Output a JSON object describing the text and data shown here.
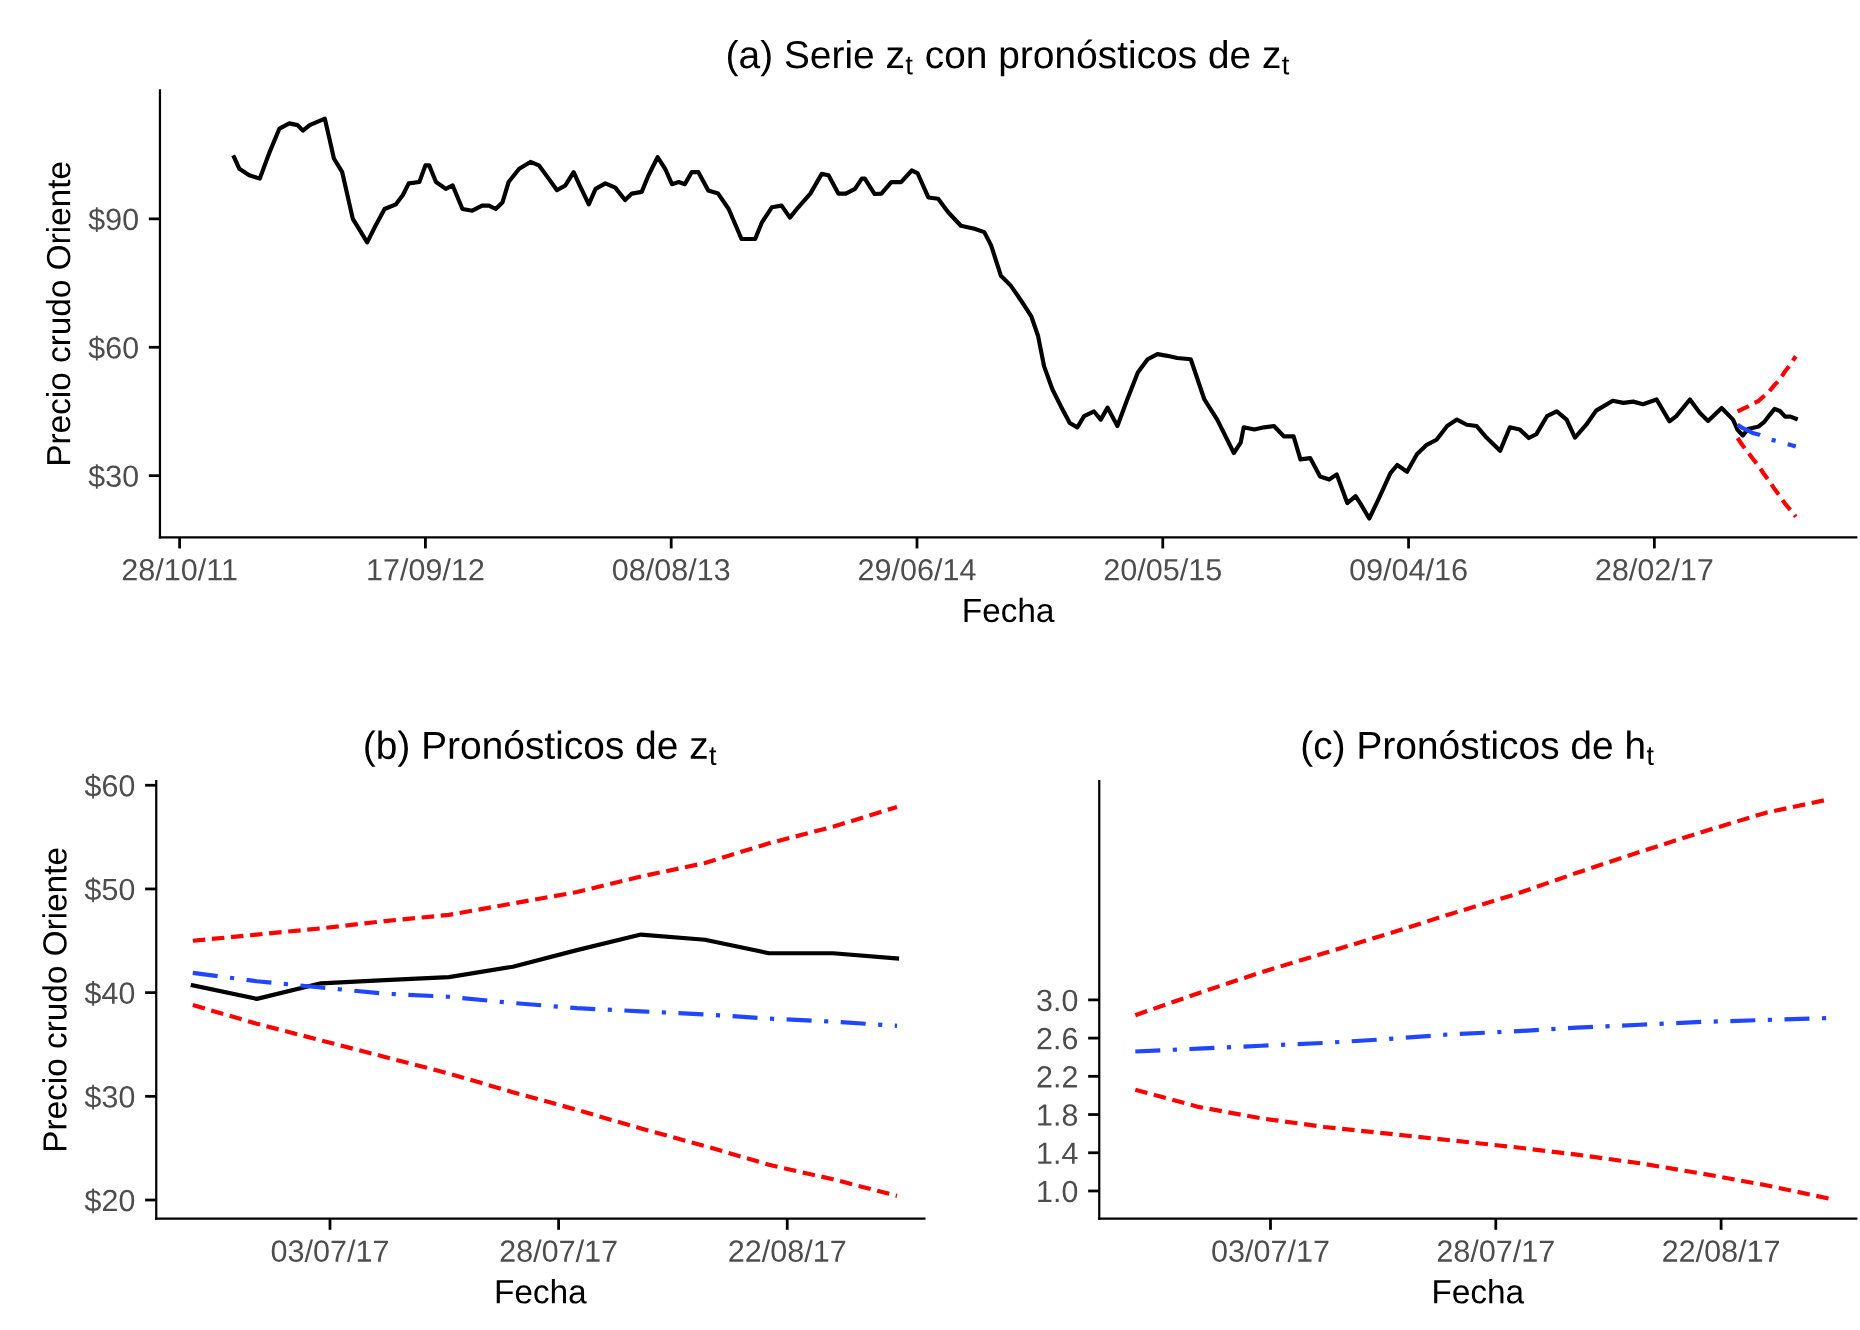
{
  "chart_data": [
    {
      "type": "line",
      "title": "(a) Serie z$_{t}$ con pronósticos de z$_{t}$",
      "xlabel": "Fecha",
      "ylabel": "Precio crudo Oriente",
      "grid": false,
      "marker": "none",
      "xlim": [
        "2011-10-02",
        "2017-11-22"
      ],
      "xticks": [
        {
          "value": "2011-10-28",
          "label": "28/10/11"
        },
        {
          "value": "2012-09-17",
          "label": "17/09/12"
        },
        {
          "value": "2013-08-08",
          "label": "08/08/13"
        },
        {
          "value": "2014-06-29",
          "label": "29/06/14"
        },
        {
          "value": "2015-05-20",
          "label": "20/05/15"
        },
        {
          "value": "2016-04-09",
          "label": "09/04/16"
        },
        {
          "value": "2017-02-28",
          "label": "28/02/17"
        }
      ],
      "ylim": [
        15.6,
        120
      ],
      "yticks": [
        {
          "value": 30,
          "label": "$30"
        },
        {
          "value": 60,
          "label": "$60"
        },
        {
          "value": 90,
          "label": "$90"
        }
      ],
      "series": [
        {
          "color": "#000000",
          "line_style": "solid",
          "x": [
            "2012-01-08",
            "2012-01-15",
            "2012-01-28",
            "2012-02-11",
            "2012-02-24",
            "2012-03-08",
            "2012-03-21",
            "2012-04-01",
            "2012-04-08",
            "2012-04-17",
            "2012-05-07",
            "2012-05-13",
            "2012-05-19",
            "2012-05-30",
            "2012-06-13",
            "2012-06-21",
            "2012-07-02",
            "2012-07-13",
            "2012-07-25",
            "2012-08-09",
            "2012-08-18",
            "2012-08-26",
            "2012-09-09",
            "2012-09-17",
            "2012-09-22",
            "2012-10-01",
            "2012-10-14",
            "2012-10-23",
            "2012-11-05",
            "2012-11-18",
            "2012-12-01",
            "2012-12-10",
            "2012-12-19",
            "2012-12-28",
            "2013-01-05",
            "2013-01-19",
            "2013-02-03",
            "2013-02-14",
            "2013-02-27",
            "2013-03-10",
            "2013-03-21",
            "2013-04-01",
            "2013-04-09",
            "2013-04-21",
            "2013-04-30",
            "2013-05-13",
            "2013-05-26",
            "2013-06-08",
            "2013-06-17",
            "2013-06-30",
            "2013-07-09",
            "2013-07-21",
            "2013-07-31",
            "2013-08-09",
            "2013-08-18",
            "2013-08-26",
            "2013-09-04",
            "2013-09-13",
            "2013-09-26",
            "2013-10-09",
            "2013-10-23",
            "2013-11-09",
            "2013-11-27",
            "2013-12-06",
            "2013-12-19",
            "2014-01-01",
            "2014-01-12",
            "2014-01-23",
            "2014-02-08",
            "2014-02-23",
            "2014-03-04",
            "2014-03-17",
            "2014-03-27",
            "2014-04-08",
            "2014-04-17",
            "2014-04-21",
            "2014-05-04",
            "2014-05-13",
            "2014-05-26",
            "2014-06-08",
            "2014-06-22",
            "2014-06-30",
            "2014-07-14",
            "2014-07-27",
            "2014-08-09",
            "2014-08-26",
            "2014-09-13",
            "2014-09-26",
            "2014-10-05",
            "2014-10-18",
            "2014-10-31",
            "2014-11-14",
            "2014-11-27",
            "2014-12-06",
            "2014-12-14",
            "2014-12-25",
            "2015-01-05",
            "2015-01-17",
            "2015-01-27",
            "2015-02-05",
            "2015-02-18",
            "2015-02-27",
            "2015-03-08",
            "2015-03-21",
            "2015-04-03",
            "2015-04-17",
            "2015-04-30",
            "2015-05-13",
            "2015-05-26",
            "2015-06-08",
            "2015-06-26",
            "2015-07-14",
            "2015-07-31",
            "2015-08-22",
            "2015-08-31",
            "2015-09-04",
            "2015-09-18",
            "2015-10-01",
            "2015-10-14",
            "2015-10-27",
            "2015-11-09",
            "2015-11-18",
            "2015-12-01",
            "2015-12-14",
            "2015-12-26",
            "2016-01-05",
            "2016-01-19",
            "2016-01-30",
            "2016-02-05",
            "2016-02-17",
            "2016-02-29",
            "2016-03-16",
            "2016-03-25",
            "2016-04-07",
            "2016-04-20",
            "2016-05-03",
            "2016-05-16",
            "2016-05-30",
            "2016-06-12",
            "2016-06-25",
            "2016-07-08",
            "2016-07-21",
            "2016-08-08",
            "2016-08-21",
            "2016-09-03",
            "2016-09-15",
            "2016-09-25",
            "2016-10-09",
            "2016-10-22",
            "2016-11-04",
            "2016-11-15",
            "2016-11-30",
            "2016-12-13",
            "2017-01-04",
            "2017-01-18",
            "2017-01-31",
            "2017-02-13",
            "2017-03-03",
            "2017-03-20",
            "2017-03-29",
            "2017-04-16",
            "2017-04-29",
            "2017-05-10",
            "2017-05-28",
            "2017-06-12",
            "2017-06-18",
            "2017-06-25",
            "2017-07-02",
            "2017-07-09",
            "2017-07-16",
            "2017-07-23",
            "2017-07-30",
            "2017-08-06",
            "2017-08-13",
            "2017-08-20",
            "2017-08-27",
            "2017-09-03"
          ],
          "values": [
            104.4,
            101.7,
            100.2,
            99.4,
            105.6,
            111.1,
            112.3,
            111.9,
            110.6,
            111.9,
            113.4,
            108.8,
            104.1,
            100.9,
            90.0,
            87.7,
            84.5,
            88.4,
            92.3,
            93.4,
            95.5,
            98.3,
            98.6,
            102.5,
            102.5,
            98.6,
            97.0,
            97.8,
            92.3,
            91.9,
            93.1,
            93.1,
            92.3,
            93.9,
            98.6,
            101.7,
            103.3,
            102.5,
            99.4,
            96.7,
            97.8,
            100.9,
            97.8,
            93.4,
            97.0,
            98.3,
            97.3,
            94.4,
            95.9,
            96.3,
            100.2,
            104.4,
            101.7,
            98.1,
            98.6,
            98.1,
            100.9,
            100.9,
            96.6,
            95.9,
            92.3,
            85.3,
            85.3,
            89.2,
            92.7,
            93.1,
            90.3,
            92.7,
            95.9,
            100.5,
            100.2,
            95.9,
            95.9,
            97.0,
            99.4,
            99.4,
            95.8,
            95.9,
            98.6,
            98.6,
            101.3,
            100.6,
            95.0,
            94.7,
            91.6,
            88.4,
            87.7,
            86.9,
            83.8,
            76.7,
            74.4,
            70.8,
            67.3,
            62.7,
            55.6,
            50.2,
            46.3,
            42.3,
            41.3,
            43.9,
            45.0,
            43.1,
            45.9,
            41.6,
            47.8,
            54.1,
            57.2,
            58.4,
            58.0,
            57.5,
            57.2,
            47.8,
            43.1,
            35.3,
            37.7,
            41.3,
            40.8,
            41.3,
            41.6,
            39.2,
            39.2,
            33.8,
            34.1,
            29.8,
            29.1,
            30.3,
            23.6,
            25.2,
            23.6,
            20.0,
            24.4,
            30.6,
            32.5,
            30.9,
            35.0,
            37.2,
            38.4,
            41.6,
            43.1,
            41.9,
            41.6,
            38.9,
            35.8,
            41.3,
            40.8,
            38.8,
            39.7,
            43.9,
            45.0,
            43.1,
            38.9,
            41.9,
            45.2,
            47.5,
            47.0,
            47.3,
            46.7,
            47.8,
            42.7,
            43.9,
            47.8,
            44.7,
            42.8,
            45.8,
            43.1,
            40.7,
            39.4,
            40.9,
            41.2,
            41.5,
            42.5,
            44.1,
            45.6,
            45.1,
            43.8,
            43.8,
            43.3
          ]
        },
        {
          "color": "#2046ff",
          "line_style": "dashdot",
          "x": [
            "2017-06-18",
            "2017-06-25",
            "2017-07-02",
            "2017-07-09",
            "2017-07-16",
            "2017-07-23",
            "2017-07-30",
            "2017-08-06",
            "2017-08-13",
            "2017-08-20",
            "2017-08-27",
            "2017-09-03"
          ],
          "values": [
            41.9,
            41.1,
            40.5,
            39.9,
            39.6,
            39.0,
            38.5,
            38.2,
            37.9,
            37.5,
            37.2,
            36.8
          ]
        },
        {
          "color": "#ff0000",
          "line_style": "dashed",
          "x": [
            "2017-06-18",
            "2017-06-25",
            "2017-07-02",
            "2017-07-09",
            "2017-07-16",
            "2017-07-23",
            "2017-07-30",
            "2017-08-06",
            "2017-08-13",
            "2017-08-20",
            "2017-08-27",
            "2017-09-03"
          ],
          "values": [
            45.0,
            45.6,
            46.2,
            46.9,
            47.5,
            48.6,
            49.7,
            51.2,
            52.5,
            54.4,
            56.0,
            57.9
          ]
        },
        {
          "color": "#ff0000",
          "line_style": "dashed",
          "x": [
            "2017-06-18",
            "2017-06-25",
            "2017-07-02",
            "2017-07-09",
            "2017-07-16",
            "2017-07-23",
            "2017-07-30",
            "2017-08-06",
            "2017-08-13",
            "2017-08-20",
            "2017-08-27",
            "2017-09-03"
          ],
          "values": [
            38.8,
            37.0,
            35.4,
            33.8,
            32.2,
            30.4,
            28.7,
            26.9,
            25.2,
            23.4,
            22.0,
            20.4
          ]
        }
      ]
    },
    {
      "type": "line",
      "title": "(b) Pronósticos de z$_{t}$",
      "xlabel": "Fecha",
      "ylabel": "Precio crudo Oriente",
      "grid": false,
      "marker": "none",
      "xlim": [
        "2017-06-14",
        "2017-09-06"
      ],
      "xticks": [
        {
          "value": "2017-07-03",
          "label": "03/07/17"
        },
        {
          "value": "2017-07-28",
          "label": "28/07/17"
        },
        {
          "value": "2017-08-22",
          "label": "22/08/17"
        }
      ],
      "ylim": [
        18.2,
        60.4
      ],
      "yticks": [
        {
          "value": 20,
          "label": "$20"
        },
        {
          "value": 30,
          "label": "$30"
        },
        {
          "value": 40,
          "label": "$40"
        },
        {
          "value": 50,
          "label": "$50"
        },
        {
          "value": 60,
          "label": "$60"
        }
      ],
      "x": [
        "2017-06-18",
        "2017-06-25",
        "2017-07-02",
        "2017-07-09",
        "2017-07-16",
        "2017-07-23",
        "2017-07-30",
        "2017-08-06",
        "2017-08-13",
        "2017-08-20",
        "2017-08-27",
        "2017-09-03"
      ],
      "series": [
        {
          "color": "#000000",
          "line_style": "solid",
          "values": [
            40.7,
            39.4,
            40.9,
            41.2,
            41.5,
            42.5,
            44.1,
            45.6,
            45.1,
            43.8,
            43.8,
            43.3
          ]
        },
        {
          "color": "#2046ff",
          "line_style": "dashdot",
          "values": [
            41.9,
            41.1,
            40.5,
            39.9,
            39.6,
            39.0,
            38.5,
            38.2,
            37.9,
            37.5,
            37.2,
            36.8
          ]
        },
        {
          "color": "#ff0000",
          "line_style": "dashed",
          "values": [
            45.0,
            45.6,
            46.2,
            46.9,
            47.5,
            48.6,
            49.7,
            51.2,
            52.5,
            54.4,
            56.0,
            57.9
          ]
        },
        {
          "color": "#ff0000",
          "line_style": "dashed",
          "values": [
            38.8,
            37.0,
            35.4,
            33.8,
            32.2,
            30.4,
            28.7,
            26.9,
            25.2,
            23.4,
            22.0,
            20.4
          ]
        }
      ]
    },
    {
      "type": "line",
      "title": "(c) Pronósticos de h$_{t}$",
      "xlabel": "Fecha",
      "grid": false,
      "marker": "none",
      "xlim": [
        "2017-06-14",
        "2017-09-06"
      ],
      "xticks": [
        {
          "value": "2017-07-03",
          "label": "03/07/17"
        },
        {
          "value": "2017-07-28",
          "label": "28/07/17"
        },
        {
          "value": "2017-08-22",
          "label": "22/08/17"
        }
      ],
      "ylim": [
        0.71,
        5.29
      ],
      "yticks": [
        {
          "value": 1.0,
          "label": "1.0"
        },
        {
          "value": 1.4,
          "label": "1.4"
        },
        {
          "value": 1.8,
          "label": "1.8"
        },
        {
          "value": 2.2,
          "label": "2.2"
        },
        {
          "value": 2.6,
          "label": "2.6"
        },
        {
          "value": 3.0,
          "label": "3.0"
        }
      ],
      "x": [
        "2017-06-18",
        "2017-06-25",
        "2017-07-02",
        "2017-07-09",
        "2017-07-16",
        "2017-07-23",
        "2017-07-30",
        "2017-08-06",
        "2017-08-13",
        "2017-08-20",
        "2017-08-27",
        "2017-09-03"
      ],
      "series": [
        {
          "color": "#2046ff",
          "line_style": "dashdot",
          "values": [
            2.46,
            2.49,
            2.52,
            2.55,
            2.59,
            2.64,
            2.67,
            2.71,
            2.74,
            2.77,
            2.79,
            2.81
          ]
        },
        {
          "color": "#ff0000",
          "line_style": "dashed",
          "values": [
            2.84,
            3.07,
            3.29,
            3.49,
            3.69,
            3.9,
            4.1,
            4.33,
            4.55,
            4.76,
            4.96,
            5.1
          ]
        },
        {
          "color": "#ff0000",
          "line_style": "dashed",
          "values": [
            2.06,
            1.88,
            1.76,
            1.67,
            1.6,
            1.53,
            1.46,
            1.38,
            1.29,
            1.18,
            1.06,
            0.92
          ]
        }
      ]
    }
  ]
}
